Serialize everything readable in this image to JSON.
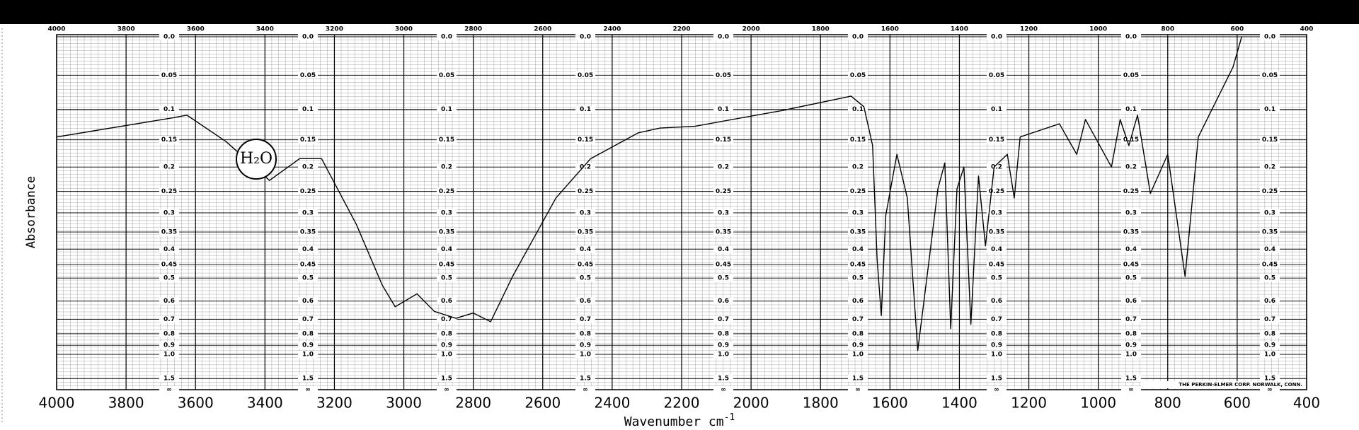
{
  "chart_data": {
    "type": "line",
    "x_label": "Wavenumber cm",
    "x_label_superscript": "-1",
    "y_label": "Absorbance",
    "xlim": [
      4000,
      400
    ],
    "xticks": [
      4000,
      3800,
      3600,
      3400,
      3200,
      3000,
      2800,
      2600,
      2400,
      2200,
      2000,
      1800,
      1600,
      1400,
      1200,
      1000,
      800,
      600,
      400
    ],
    "y_scale": "transmittance",
    "yticks": [
      {
        "value": 0,
        "label": "0.0"
      },
      0.05,
      0.1,
      0.15,
      0.2,
      0.25,
      0.3,
      0.35,
      0.4,
      0.45,
      0.5,
      0.6,
      0.7,
      0.8,
      0.9,
      {
        "value": 1,
        "label": "1.0"
      },
      1.5,
      {
        "value": null,
        "label": "∞"
      }
    ],
    "grid": true,
    "color": "#000000",
    "x": [
      4000,
      3662,
      3625,
      3512,
      3387,
      3300,
      3237,
      3137,
      3062,
      3025,
      2962,
      2912,
      2850,
      2800,
      2750,
      2687,
      2562,
      2462,
      2325,
      2262,
      2162,
      1912,
      1712,
      1675,
      1650,
      1637,
      1625,
      1612,
      1580,
      1550,
      1520,
      1487,
      1462,
      1442,
      1425,
      1407,
      1387,
      1367,
      1345,
      1325,
      1300,
      1262,
      1242,
      1225,
      1112,
      1062,
      1037,
      962,
      937,
      912,
      887,
      850,
      800,
      750,
      712,
      612,
      587
    ],
    "values": [
      0.145,
      0.113,
      0.109,
      0.153,
      0.227,
      0.184,
      0.184,
      0.329,
      0.529,
      0.629,
      0.566,
      0.654,
      0.694,
      0.663,
      0.715,
      0.494,
      0.265,
      0.184,
      0.138,
      0.13,
      0.127,
      0.102,
      0.08,
      0.096,
      0.16,
      0.432,
      0.678,
      0.306,
      0.176,
      0.265,
      0.955,
      0.432,
      0.245,
      0.192,
      0.762,
      0.245,
      0.2,
      0.733,
      0.218,
      0.39,
      0.2,
      0.176,
      0.265,
      0.145,
      0.123,
      0.176,
      0.116,
      0.2,
      0.116,
      0.16,
      0.109,
      0.255,
      0.176,
      0.494,
      0.145,
      0.039,
      0
    ],
    "annotation": "H₂O",
    "note": "THE PERKIN-ELMER CORP. NORWALK, CONN."
  }
}
